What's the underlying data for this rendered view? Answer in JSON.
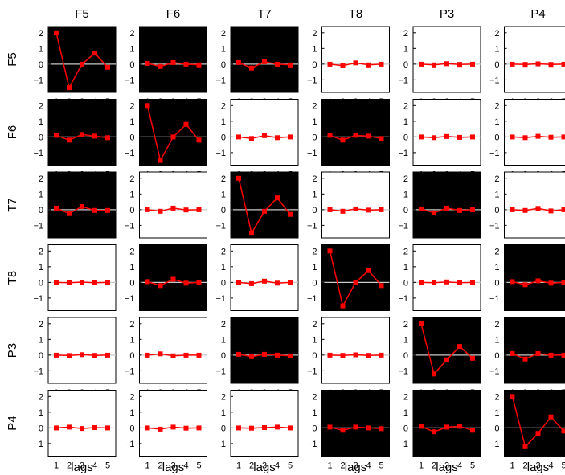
{
  "chart_data": {
    "type": "line",
    "channels": [
      "F5",
      "F6",
      "T7",
      "T8",
      "P3",
      "P4"
    ],
    "x": [
      1,
      2,
      3,
      4,
      5
    ],
    "xticklabels": [
      "1",
      "2",
      "3",
      "4",
      "5"
    ],
    "yticks": [
      2,
      1,
      0,
      -1
    ],
    "yticklabels": [
      "2",
      "1",
      "0",
      "−1"
    ],
    "ylim": [
      -1.8,
      2.4
    ],
    "xlabel": "lags",
    "line_color": "#ff0000",
    "zero_line_color": "#c8c8c8",
    "dark_background": "#000000",
    "light_background": "#ffffff",
    "panels": [
      {
        "row": "F5",
        "col": "F5",
        "dark": true,
        "values": [
          2.0,
          -1.5,
          0.0,
          0.7,
          -0.2
        ]
      },
      {
        "row": "F5",
        "col": "F6",
        "dark": true,
        "values": [
          0.05,
          -0.15,
          0.1,
          0.0,
          -0.05
        ]
      },
      {
        "row": "F5",
        "col": "T7",
        "dark": true,
        "values": [
          0.1,
          -0.25,
          0.15,
          0.0,
          -0.05
        ]
      },
      {
        "row": "F5",
        "col": "T8",
        "dark": false,
        "values": [
          0.0,
          -0.1,
          0.08,
          -0.05,
          0.0
        ]
      },
      {
        "row": "F5",
        "col": "P3",
        "dark": false,
        "values": [
          0.0,
          -0.05,
          0.03,
          -0.02,
          0.0
        ]
      },
      {
        "row": "F5",
        "col": "P4",
        "dark": false,
        "values": [
          0.0,
          -0.02,
          0.02,
          -0.02,
          0.0
        ]
      },
      {
        "row": "F6",
        "col": "F5",
        "dark": true,
        "values": [
          0.1,
          -0.2,
          0.15,
          0.05,
          -0.05
        ]
      },
      {
        "row": "F6",
        "col": "F6",
        "dark": true,
        "values": [
          2.0,
          -1.5,
          0.0,
          0.8,
          -0.2
        ]
      },
      {
        "row": "F6",
        "col": "T7",
        "dark": false,
        "values": [
          0.0,
          -0.1,
          0.08,
          -0.05,
          0.0
        ]
      },
      {
        "row": "F6",
        "col": "T8",
        "dark": true,
        "values": [
          0.1,
          -0.2,
          0.1,
          0.05,
          -0.1
        ]
      },
      {
        "row": "F6",
        "col": "P3",
        "dark": false,
        "values": [
          0.0,
          -0.05,
          0.03,
          -0.03,
          0.0
        ]
      },
      {
        "row": "F6",
        "col": "P4",
        "dark": false,
        "values": [
          0.0,
          -0.05,
          0.04,
          -0.02,
          0.0
        ]
      },
      {
        "row": "T7",
        "col": "F5",
        "dark": true,
        "values": [
          0.1,
          -0.25,
          0.2,
          -0.05,
          -0.05
        ]
      },
      {
        "row": "T7",
        "col": "F6",
        "dark": false,
        "values": [
          0.0,
          -0.1,
          0.1,
          -0.02,
          0.0
        ]
      },
      {
        "row": "T7",
        "col": "T7",
        "dark": true,
        "values": [
          2.0,
          -1.5,
          -0.1,
          0.75,
          -0.3
        ]
      },
      {
        "row": "T7",
        "col": "T8",
        "dark": false,
        "values": [
          0.0,
          -0.1,
          0.05,
          -0.03,
          0.0
        ]
      },
      {
        "row": "T7",
        "col": "P3",
        "dark": true,
        "values": [
          0.05,
          -0.2,
          0.1,
          -0.05,
          0.0
        ]
      },
      {
        "row": "T7",
        "col": "P4",
        "dark": false,
        "values": [
          0.0,
          -0.05,
          0.08,
          -0.08,
          0.0
        ]
      },
      {
        "row": "T8",
        "col": "F5",
        "dark": false,
        "values": [
          0.0,
          -0.02,
          0.02,
          -0.02,
          0.0
        ]
      },
      {
        "row": "T8",
        "col": "F6",
        "dark": true,
        "values": [
          0.05,
          -0.2,
          0.2,
          -0.05,
          0.0
        ]
      },
      {
        "row": "T8",
        "col": "T7",
        "dark": false,
        "values": [
          0.0,
          -0.08,
          0.08,
          -0.05,
          0.0
        ]
      },
      {
        "row": "T8",
        "col": "T8",
        "dark": true,
        "values": [
          2.0,
          -1.5,
          0.0,
          0.75,
          -0.2
        ]
      },
      {
        "row": "T8",
        "col": "P3",
        "dark": false,
        "values": [
          0.0,
          -0.02,
          0.03,
          -0.02,
          0.0
        ]
      },
      {
        "row": "T8",
        "col": "P4",
        "dark": true,
        "values": [
          0.05,
          -0.15,
          0.1,
          -0.05,
          0.0
        ]
      },
      {
        "row": "P3",
        "col": "F5",
        "dark": false,
        "values": [
          0.0,
          -0.03,
          0.03,
          -0.02,
          0.0
        ]
      },
      {
        "row": "P3",
        "col": "F6",
        "dark": false,
        "values": [
          0.0,
          0.08,
          -0.05,
          0.0,
          0.0
        ]
      },
      {
        "row": "P3",
        "col": "T7",
        "dark": true,
        "values": [
          0.05,
          -0.1,
          0.05,
          0.0,
          -0.05
        ]
      },
      {
        "row": "P3",
        "col": "T8",
        "dark": false,
        "values": [
          0.0,
          -0.02,
          0.02,
          -0.02,
          0.0
        ]
      },
      {
        "row": "P3",
        "col": "P3",
        "dark": true,
        "values": [
          2.0,
          -1.2,
          -0.3,
          0.55,
          -0.2
        ]
      },
      {
        "row": "P3",
        "col": "P4",
        "dark": true,
        "values": [
          0.1,
          -0.25,
          0.1,
          0.0,
          0.0
        ]
      },
      {
        "row": "P4",
        "col": "F5",
        "dark": false,
        "values": [
          0.0,
          0.05,
          -0.04,
          0.02,
          0.0
        ]
      },
      {
        "row": "P4",
        "col": "F6",
        "dark": false,
        "values": [
          0.0,
          -0.08,
          0.05,
          -0.02,
          0.0
        ]
      },
      {
        "row": "P4",
        "col": "T7",
        "dark": false,
        "values": [
          0.0,
          -0.02,
          0.02,
          0.05,
          0.0
        ]
      },
      {
        "row": "P4",
        "col": "T8",
        "dark": true,
        "values": [
          0.05,
          -0.15,
          0.05,
          0.0,
          -0.05
        ]
      },
      {
        "row": "P4",
        "col": "P3",
        "dark": true,
        "values": [
          0.1,
          -0.25,
          0.05,
          0.1,
          -0.15
        ]
      },
      {
        "row": "P4",
        "col": "P4",
        "dark": true,
        "values": [
          2.0,
          -1.2,
          -0.35,
          0.7,
          -0.2
        ]
      }
    ]
  }
}
